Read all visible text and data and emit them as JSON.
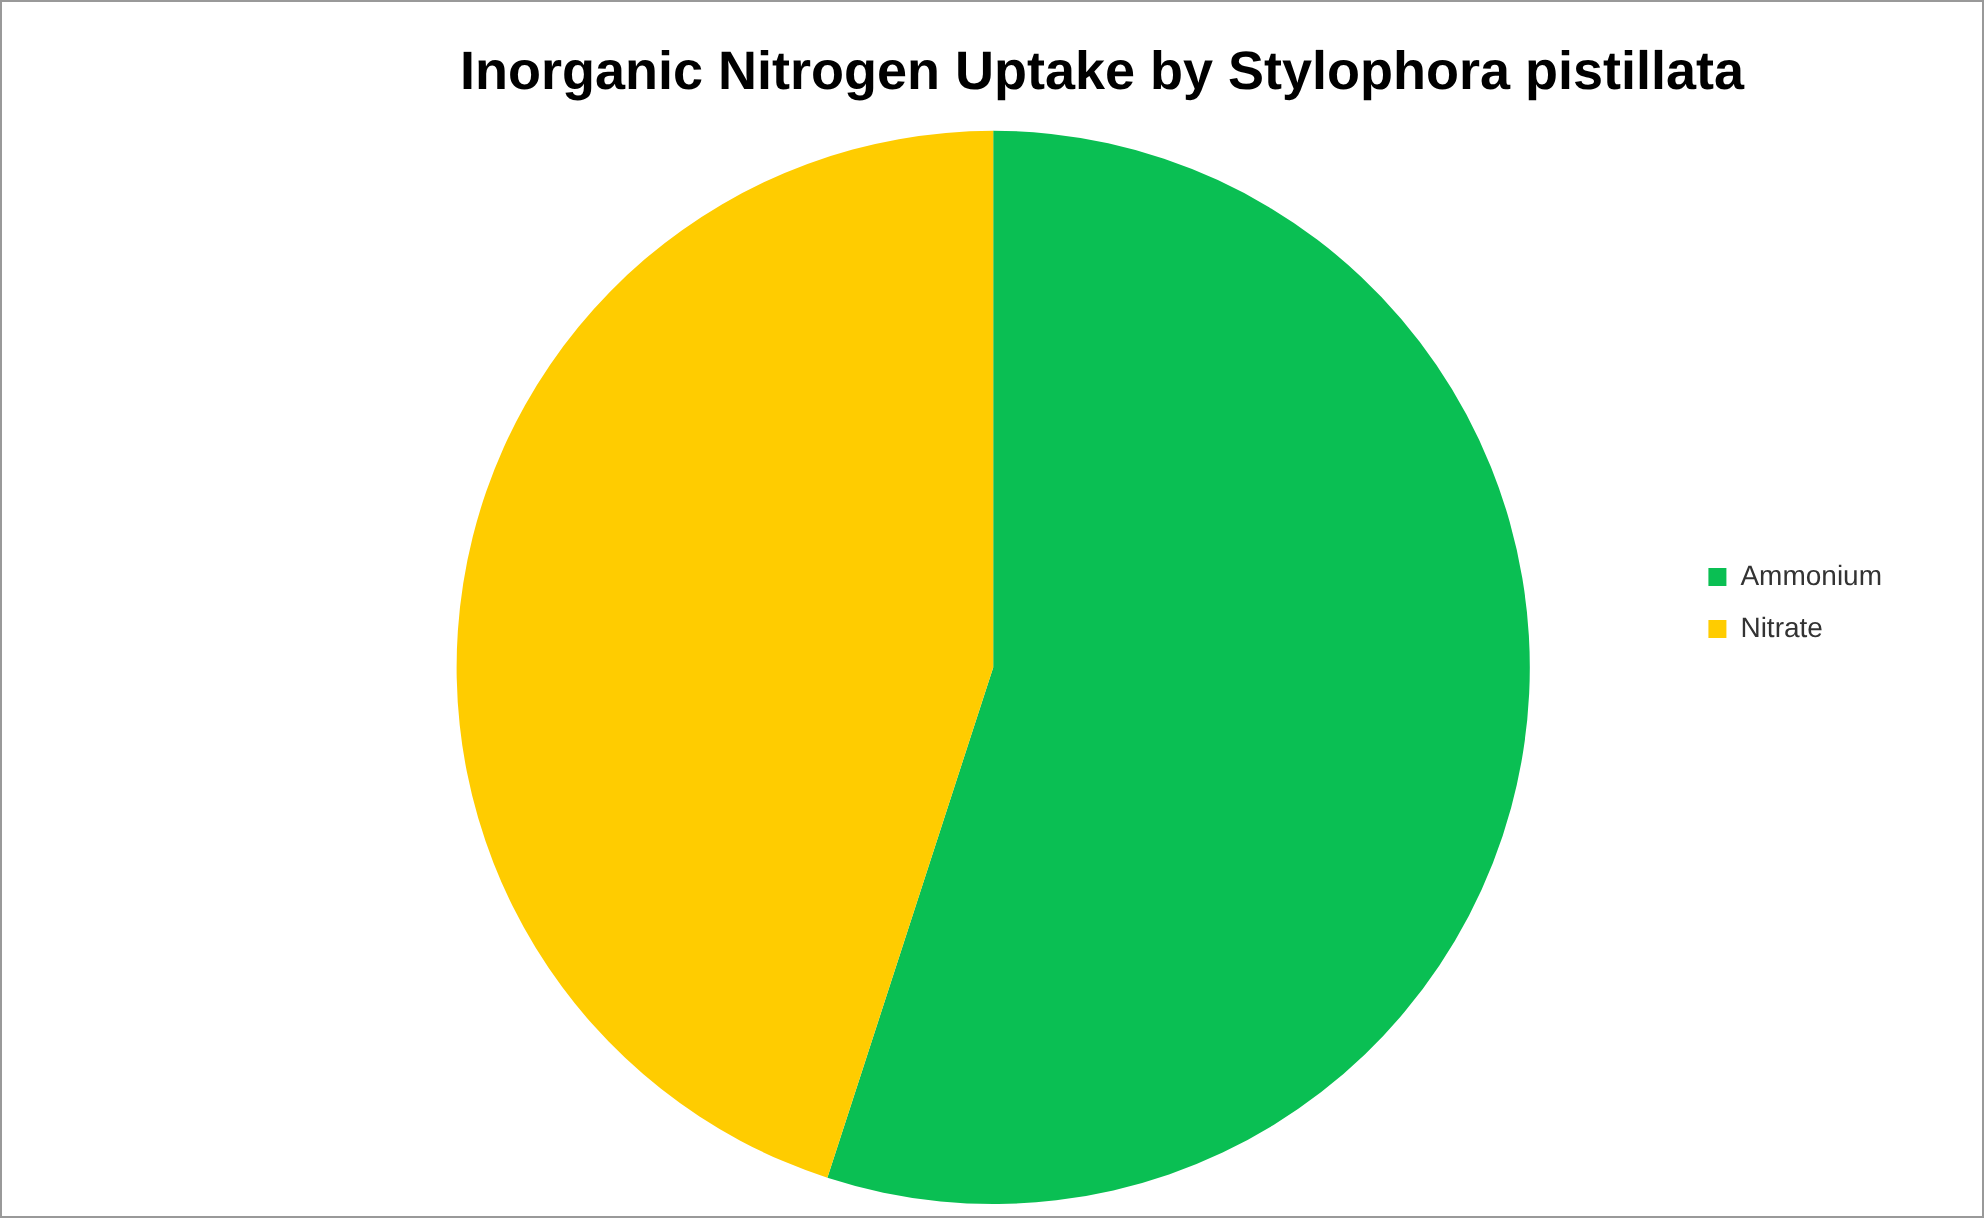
{
  "chart_data": {
    "type": "pie",
    "title": "Inorganic Nitrogen Uptake by Stylophora pistillata",
    "categories": [
      "Ammonium",
      "Nitrate"
    ],
    "values": [
      55,
      45
    ],
    "colors": [
      "#0abf53",
      "#ffcc00"
    ],
    "legend": "right"
  }
}
